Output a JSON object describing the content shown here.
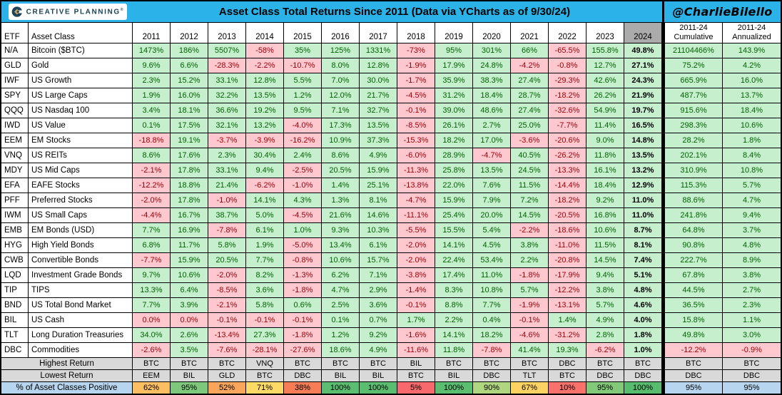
{
  "header": {
    "logo_text": "CREATIVE PLANNING",
    "logo_reg_mark": "®",
    "title": "Asset Class Total Returns Since 2011 (Data via YCharts as of 9/30/24)",
    "handle": "@CharlieBilello"
  },
  "colors": {
    "accent_cyan": "#2BB3E9",
    "positive_bg": "#C6EFCE",
    "positive_text": "#006100",
    "negative_bg": "#FFC7CE",
    "negative_text": "#9C0006",
    "header_2024_bg": "#ABABAB",
    "summary_label_gray": "#D9D9D9",
    "pct_label_blue": "#B7D5EE",
    "logo_navy": "#1C4358",
    "logo_gold": "#C8A563"
  },
  "chart_data": {
    "type": "table",
    "title": "Asset Class Total Returns Since 2011 (Data via YCharts as of 9/30/24)",
    "etf_header": "ETF",
    "asset_class_header": "Asset Class",
    "year_columns": [
      "2011",
      "2012",
      "2013",
      "2014",
      "2015",
      "2016",
      "2017",
      "2018",
      "2019",
      "2020",
      "2021",
      "2022",
      "2023",
      "2024"
    ],
    "cumulative_header": [
      "2011-24",
      "Cumulative"
    ],
    "annualized_header": [
      "2011-24",
      "Annualized"
    ],
    "rows": [
      {
        "etf": "N/A",
        "asset_class": "Bitcoin ($BTC)",
        "returns": [
          "1473%",
          "186%",
          "5507%",
          "-58%",
          "35%",
          "125%",
          "1331%",
          "-73%",
          "95%",
          "301%",
          "66%",
          "-65.5%",
          "155.8%",
          "49.8%"
        ],
        "cumulative": "21104466%",
        "annualized": "143.9%"
      },
      {
        "etf": "GLD",
        "asset_class": "Gold",
        "returns": [
          "9.6%",
          "6.6%",
          "-28.3%",
          "-2.2%",
          "-10.7%",
          "8.0%",
          "12.8%",
          "-1.9%",
          "17.9%",
          "24.8%",
          "-4.2%",
          "-0.8%",
          "12.7%",
          "27.1%"
        ],
        "cumulative": "75.2%",
        "annualized": "4.2%"
      },
      {
        "etf": "IWF",
        "asset_class": "US Growth",
        "returns": [
          "2.3%",
          "15.2%",
          "33.1%",
          "12.8%",
          "5.5%",
          "7.0%",
          "30.0%",
          "-1.7%",
          "35.9%",
          "38.3%",
          "27.4%",
          "-29.3%",
          "42.6%",
          "24.3%"
        ],
        "cumulative": "665.9%",
        "annualized": "16.0%"
      },
      {
        "etf": "SPY",
        "asset_class": "US Large Caps",
        "returns": [
          "1.9%",
          "16.0%",
          "32.2%",
          "13.5%",
          "1.2%",
          "12.0%",
          "21.7%",
          "-4.5%",
          "31.2%",
          "18.4%",
          "28.7%",
          "-18.2%",
          "26.2%",
          "21.9%"
        ],
        "cumulative": "487.7%",
        "annualized": "13.7%"
      },
      {
        "etf": "QQQ",
        "asset_class": "US Nasdaq 100",
        "returns": [
          "3.4%",
          "18.1%",
          "36.6%",
          "19.2%",
          "9.5%",
          "7.1%",
          "32.7%",
          "-0.1%",
          "39.0%",
          "48.6%",
          "27.4%",
          "-32.6%",
          "54.9%",
          "19.7%"
        ],
        "cumulative": "915.6%",
        "annualized": "18.4%"
      },
      {
        "etf": "IWD",
        "asset_class": "US Value",
        "returns": [
          "0.1%",
          "17.5%",
          "32.1%",
          "13.2%",
          "-4.0%",
          "17.3%",
          "13.5%",
          "-8.5%",
          "26.1%",
          "2.7%",
          "25.0%",
          "-7.7%",
          "11.4%",
          "16.5%"
        ],
        "cumulative": "298.3%",
        "annualized": "10.6%"
      },
      {
        "etf": "EEM",
        "asset_class": "EM Stocks",
        "returns": [
          "-18.8%",
          "19.1%",
          "-3.7%",
          "-3.9%",
          "-16.2%",
          "10.9%",
          "37.3%",
          "-15.3%",
          "18.2%",
          "17.0%",
          "-3.6%",
          "-20.6%",
          "9.0%",
          "14.8%"
        ],
        "cumulative": "28.2%",
        "annualized": "1.8%"
      },
      {
        "etf": "VNQ",
        "asset_class": "US REITs",
        "returns": [
          "8.6%",
          "17.6%",
          "2.3%",
          "30.4%",
          "2.4%",
          "8.6%",
          "4.9%",
          "-6.0%",
          "28.9%",
          "-4.7%",
          "40.5%",
          "-26.2%",
          "11.8%",
          "13.5%"
        ],
        "cumulative": "202.1%",
        "annualized": "8.4%"
      },
      {
        "etf": "MDY",
        "asset_class": "US Mid Caps",
        "returns": [
          "-2.1%",
          "17.8%",
          "33.1%",
          "9.4%",
          "-2.5%",
          "20.5%",
          "15.9%",
          "-11.3%",
          "25.8%",
          "13.5%",
          "24.5%",
          "-13.3%",
          "16.1%",
          "13.2%"
        ],
        "cumulative": "310.9%",
        "annualized": "10.8%"
      },
      {
        "etf": "EFA",
        "asset_class": "EAFE Stocks",
        "returns": [
          "-12.2%",
          "18.8%",
          "21.4%",
          "-6.2%",
          "-1.0%",
          "1.4%",
          "25.1%",
          "-13.8%",
          "22.0%",
          "7.6%",
          "11.5%",
          "-14.4%",
          "18.4%",
          "12.9%"
        ],
        "cumulative": "115.3%",
        "annualized": "5.7%"
      },
      {
        "etf": "PFF",
        "asset_class": "Preferred Stocks",
        "returns": [
          "-2.0%",
          "17.8%",
          "-1.0%",
          "14.1%",
          "4.3%",
          "1.3%",
          "8.1%",
          "-4.7%",
          "15.9%",
          "7.9%",
          "7.2%",
          "-18.2%",
          "9.2%",
          "11.0%"
        ],
        "cumulative": "88.6%",
        "annualized": "4.7%"
      },
      {
        "etf": "IWM",
        "asset_class": "US Small Caps",
        "returns": [
          "-4.4%",
          "16.7%",
          "38.7%",
          "5.0%",
          "-4.5%",
          "21.6%",
          "14.6%",
          "-11.1%",
          "25.4%",
          "20.0%",
          "14.5%",
          "-20.5%",
          "16.8%",
          "11.0%"
        ],
        "cumulative": "241.8%",
        "annualized": "9.4%"
      },
      {
        "etf": "EMB",
        "asset_class": "EM Bonds (USD)",
        "returns": [
          "7.7%",
          "16.9%",
          "-7.8%",
          "6.1%",
          "1.0%",
          "9.3%",
          "10.3%",
          "-5.5%",
          "15.5%",
          "5.4%",
          "-2.2%",
          "-18.6%",
          "10.6%",
          "8.7%"
        ],
        "cumulative": "64.8%",
        "annualized": "3.7%"
      },
      {
        "etf": "HYG",
        "asset_class": "High Yield Bonds",
        "returns": [
          "6.8%",
          "11.7%",
          "5.8%",
          "1.9%",
          "-5.0%",
          "13.4%",
          "6.1%",
          "-2.0%",
          "14.1%",
          "4.5%",
          "3.8%",
          "-11.0%",
          "11.5%",
          "8.1%"
        ],
        "cumulative": "90.8%",
        "annualized": "4.8%"
      },
      {
        "etf": "CWB",
        "asset_class": "Convertible Bonds",
        "returns": [
          "-7.7%",
          "15.9%",
          "20.5%",
          "7.7%",
          "-0.8%",
          "10.6%",
          "15.7%",
          "-2.0%",
          "22.4%",
          "53.4%",
          "2.2%",
          "-20.8%",
          "14.5%",
          "7.4%"
        ],
        "cumulative": "222.7%",
        "annualized": "8.9%"
      },
      {
        "etf": "LQD",
        "asset_class": "Investment Grade Bonds",
        "returns": [
          "9.7%",
          "10.6%",
          "-2.0%",
          "8.2%",
          "-1.3%",
          "6.2%",
          "7.1%",
          "-3.8%",
          "17.4%",
          "11.0%",
          "-1.8%",
          "-17.9%",
          "9.4%",
          "5.1%"
        ],
        "cumulative": "67.8%",
        "annualized": "3.8%"
      },
      {
        "etf": "TIP",
        "asset_class": "TIPS",
        "returns": [
          "13.3%",
          "6.4%",
          "-8.5%",
          "3.6%",
          "-1.8%",
          "4.7%",
          "2.9%",
          "-1.4%",
          "8.3%",
          "10.8%",
          "5.7%",
          "-12.2%",
          "3.8%",
          "4.8%"
        ],
        "cumulative": "44.5%",
        "annualized": "2.7%"
      },
      {
        "etf": "BND",
        "asset_class": "US Total Bond Market",
        "returns": [
          "7.7%",
          "3.9%",
          "-2.1%",
          "5.8%",
          "0.6%",
          "2.5%",
          "3.6%",
          "-0.1%",
          "8.8%",
          "7.7%",
          "-1.9%",
          "-13.1%",
          "5.7%",
          "4.6%"
        ],
        "cumulative": "36.5%",
        "annualized": "2.3%"
      },
      {
        "etf": "BIL",
        "asset_class": "US Cash",
        "returns": [
          "0.0%",
          "0.0%",
          "-0.1%",
          "-0.1%",
          "-0.1%",
          "0.1%",
          "0.7%",
          "1.7%",
          "2.2%",
          "0.4%",
          "-0.1%",
          "1.4%",
          "4.9%",
          "4.0%"
        ],
        "cumulative": "15.8%",
        "annualized": "1.1%"
      },
      {
        "etf": "TLT",
        "asset_class": "Long Duration Treasuries",
        "returns": [
          "34.0%",
          "2.6%",
          "-13.4%",
          "27.3%",
          "-1.8%",
          "1.2%",
          "9.2%",
          "-1.6%",
          "14.1%",
          "18.2%",
          "-4.6%",
          "-31.2%",
          "2.8%",
          "1.8%"
        ],
        "cumulative": "49.8%",
        "annualized": "3.0%"
      },
      {
        "etf": "DBC",
        "asset_class": "Commodities",
        "returns": [
          "-2.6%",
          "3.5%",
          "-7.6%",
          "-28.1%",
          "-27.6%",
          "18.6%",
          "4.9%",
          "-11.6%",
          "11.8%",
          "-7.8%",
          "41.4%",
          "19.3%",
          "-6.2%",
          "1.0%"
        ],
        "cumulative": "-12.2%",
        "annualized": "-0.9%"
      }
    ],
    "summary_rows": {
      "highest": {
        "label": "Highest Return",
        "values": [
          "BTC",
          "BTC",
          "BTC",
          "VNQ",
          "BTC",
          "BTC",
          "BTC",
          "BIL",
          "BTC",
          "BTC",
          "BTC",
          "DBC",
          "BTC",
          "BTC"
        ],
        "cumulative": "BTC",
        "annualized": "BTC"
      },
      "lowest": {
        "label": "Lowest Return",
        "values": [
          "EEM",
          "BIL",
          "GLD",
          "BTC",
          "DBC",
          "BIL",
          "BIL",
          "BTC",
          "BIL",
          "DBC",
          "TLT",
          "BTC",
          "DBC",
          "DBC"
        ],
        "cumulative": "DBC",
        "annualized": "DBC"
      },
      "pct_positive": {
        "label": "% of Asset Classes Positive",
        "values": [
          "62%",
          "95%",
          "52%",
          "71%",
          "38%",
          "100%",
          "100%",
          "5%",
          "100%",
          "90%",
          "67%",
          "10%",
          "95%",
          "100%"
        ],
        "colors": [
          "#FBBE63",
          "#7EC87C",
          "#F9A65C",
          "#FDD966",
          "#F67D56",
          "#5BBD6F",
          "#5BBD6F",
          "#F8696B",
          "#5BBD6F",
          "#B1D680",
          "#FCD363",
          "#F8716B",
          "#82C979",
          "#57BC6D"
        ],
        "cumulative": "95%",
        "annualized": "95%"
      }
    }
  }
}
